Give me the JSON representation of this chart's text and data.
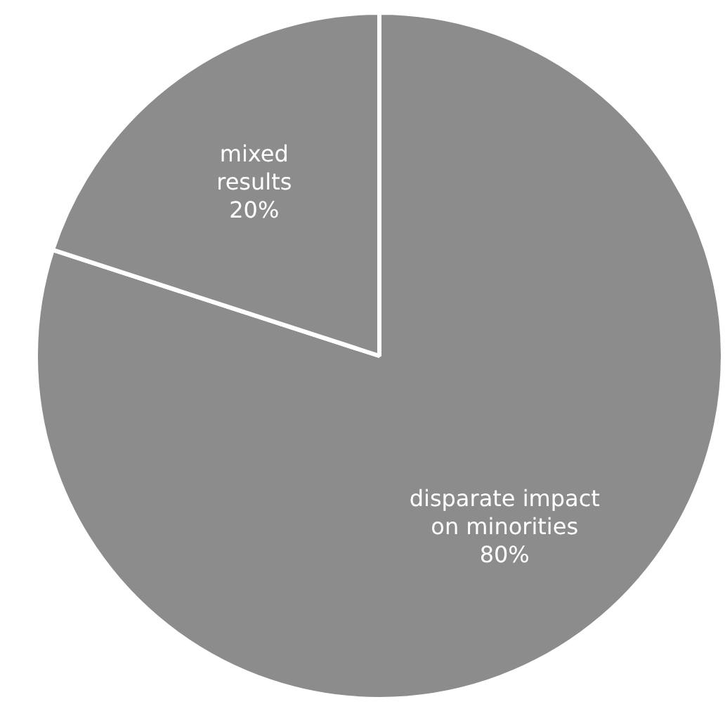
{
  "chart_data": {
    "type": "pie",
    "categories": [
      "disparate impact on minorities",
      "mixed results"
    ],
    "values": [
      80,
      20
    ],
    "colors": [
      "#8c8c8c",
      "#8c8c8c"
    ],
    "value_labels": [
      "80%",
      "20%"
    ],
    "legend": false
  }
}
